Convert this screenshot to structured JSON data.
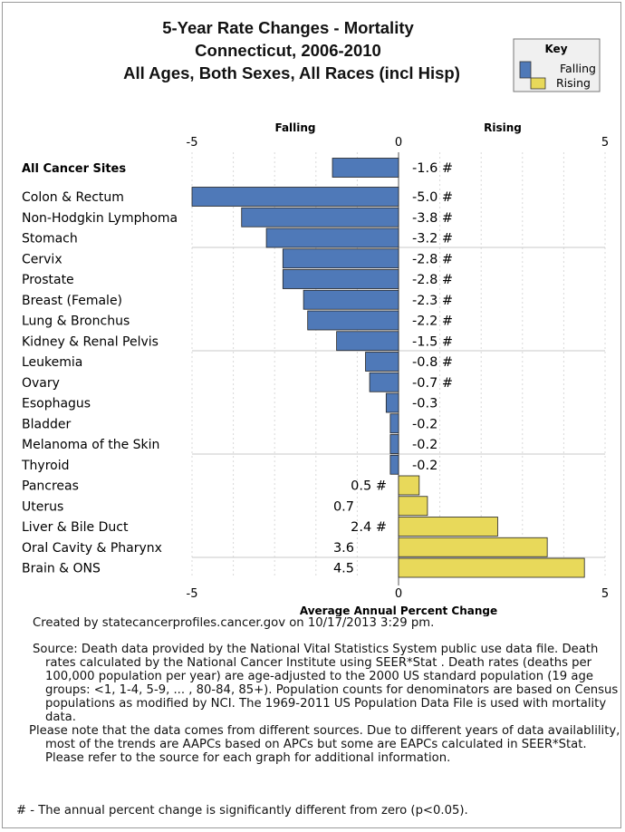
{
  "chart_data": {
    "type": "bar",
    "orientation": "horizontal",
    "title": [
      "5-Year Rate Changes - Mortality",
      "Connecticut, 2006-2010",
      "All Ages, Both Sexes, All Races (incl Hisp)"
    ],
    "xlabel": "Average Annual Percent Change",
    "xlim": [
      -5,
      5
    ],
    "xticks": [
      -5,
      0,
      5
    ],
    "header_falling": "Falling",
    "header_rising": "Rising",
    "categories": [
      "All Cancer Sites",
      "Colon & Rectum",
      "Non-Hodgkin Lymphoma",
      "Stomach",
      "Cervix",
      "Prostate",
      "Breast (Female)",
      "Lung & Bronchus",
      "Kidney & Renal Pelvis",
      "Leukemia",
      "Ovary",
      "Esophagus",
      "Bladder",
      "Melanoma of the Skin",
      "Thyroid",
      "Pancreas",
      "Uterus",
      "Liver & Bile Duct",
      "Oral Cavity & Pharynx",
      "Brain & ONS"
    ],
    "values": [
      -1.6,
      -5.0,
      -3.8,
      -3.2,
      -2.8,
      -2.8,
      -2.3,
      -2.2,
      -1.5,
      -0.8,
      -0.7,
      -0.3,
      -0.2,
      -0.2,
      -0.2,
      0.5,
      0.7,
      2.4,
      3.6,
      4.5
    ],
    "value_labels": [
      "-1.6",
      "-5.0",
      "-3.8",
      "-3.2",
      "-2.8",
      "-2.8",
      "-2.3",
      "-2.2",
      "-1.5",
      "-0.8",
      "-0.7",
      "-0.3",
      "-0.2",
      "-0.2",
      "-0.2",
      "0.5",
      "0.7",
      "2.4",
      "3.6",
      "4.5"
    ],
    "significant": [
      true,
      true,
      true,
      true,
      true,
      true,
      true,
      true,
      true,
      true,
      true,
      false,
      false,
      false,
      false,
      true,
      false,
      true,
      false,
      false
    ],
    "significance_marker": "#",
    "legend": {
      "title": "Key",
      "items": [
        "Falling",
        "Rising"
      ],
      "placement": "top-right"
    },
    "colors": {
      "falling": "#4f79b8",
      "rising": "#e8d95a",
      "separator": "#c8c8c8"
    },
    "grid": true
  },
  "notes": {
    "created": "Created by statecancerprofiles.cancer.gov on 10/17/2013 3:29 pm.",
    "source": "Source: Death data provided by the  National Vital Statistics System public use data file. Death rates calculated by the National Cancer Institute using SEER*Stat . Death rates (deaths per 100,000 population per year) are age-adjusted to the 2000 US standard population (19 age groups: <1, 1-4, 5-9, ... , 80-84, 85+). Population counts for denominators are based on Census populations as modified by NCI. The 1969-2011 US Population Data File is used with mortality data.",
    "please_note": "Please note that the data comes from different sources. Due to different years of data availablility, most of the trends are AAPCs based on APCs but some are EAPCs calculated in SEER*Stat. Please refer to the source for each graph for additional information.",
    "footnote": "# - The annual percent change is significantly different from zero (p<0.05)."
  }
}
